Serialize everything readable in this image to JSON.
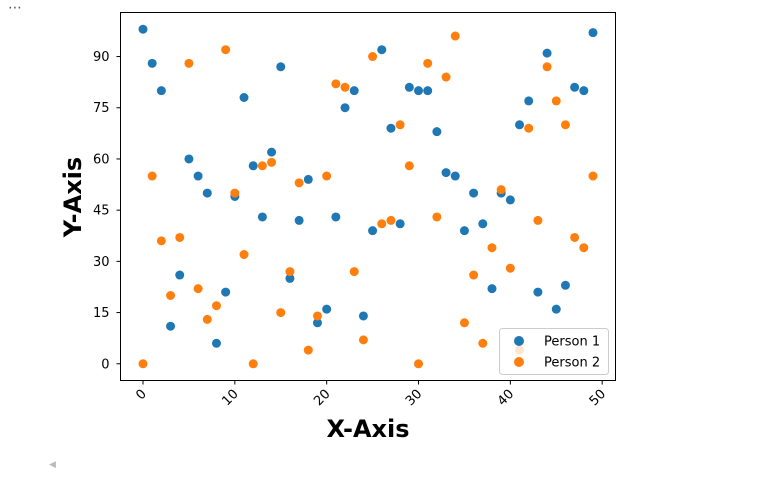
{
  "output_ellipsis": "⋯",
  "colors": {
    "series1": "#1f77b4",
    "series2": "#ff7f0e"
  },
  "chart_data": {
    "type": "scatter",
    "title": "",
    "xlabel": "X-Axis",
    "ylabel": "Y-Axis",
    "xlim": [
      -2.45,
      51.45
    ],
    "ylim": [
      -4.9,
      102.9
    ],
    "xticks": [
      0,
      10,
      20,
      30,
      40,
      50
    ],
    "yticks": [
      0,
      15,
      30,
      45,
      60,
      75,
      90
    ],
    "grid": false,
    "legend_position": "lower-right",
    "x": [
      0,
      1,
      2,
      3,
      4,
      5,
      6,
      7,
      8,
      9,
      10,
      11,
      12,
      13,
      14,
      15,
      16,
      17,
      18,
      19,
      20,
      21,
      22,
      23,
      24,
      25,
      26,
      27,
      28,
      29,
      30,
      31,
      32,
      33,
      34,
      35,
      36,
      37,
      38,
      39,
      40,
      41,
      42,
      43,
      44,
      45,
      46,
      47,
      48,
      49
    ],
    "series": [
      {
        "name": "Person 1",
        "values": [
          98,
          88,
          80,
          11,
          26,
          60,
          55,
          50,
          6,
          21,
          49,
          78,
          58,
          43,
          62,
          87,
          25,
          42,
          54,
          12,
          16,
          43,
          75,
          80,
          14,
          39,
          92,
          69,
          41,
          81,
          80,
          80,
          68,
          56,
          55,
          39,
          50,
          41,
          22,
          50,
          48,
          70,
          77,
          21,
          91,
          16,
          23,
          81,
          80,
          97
        ]
      },
      {
        "name": "Person 2",
        "values": [
          0,
          55,
          36,
          20,
          37,
          88,
          22,
          13,
          17,
          92,
          50,
          32,
          0,
          58,
          59,
          15,
          27,
          53,
          4,
          14,
          55,
          82,
          81,
          27,
          7,
          90,
          41,
          42,
          70,
          58,
          0,
          88,
          43,
          84,
          96,
          12,
          26,
          6,
          34,
          51,
          28,
          4,
          69,
          42,
          87,
          77,
          70,
          37,
          34,
          55
        ]
      }
    ]
  }
}
